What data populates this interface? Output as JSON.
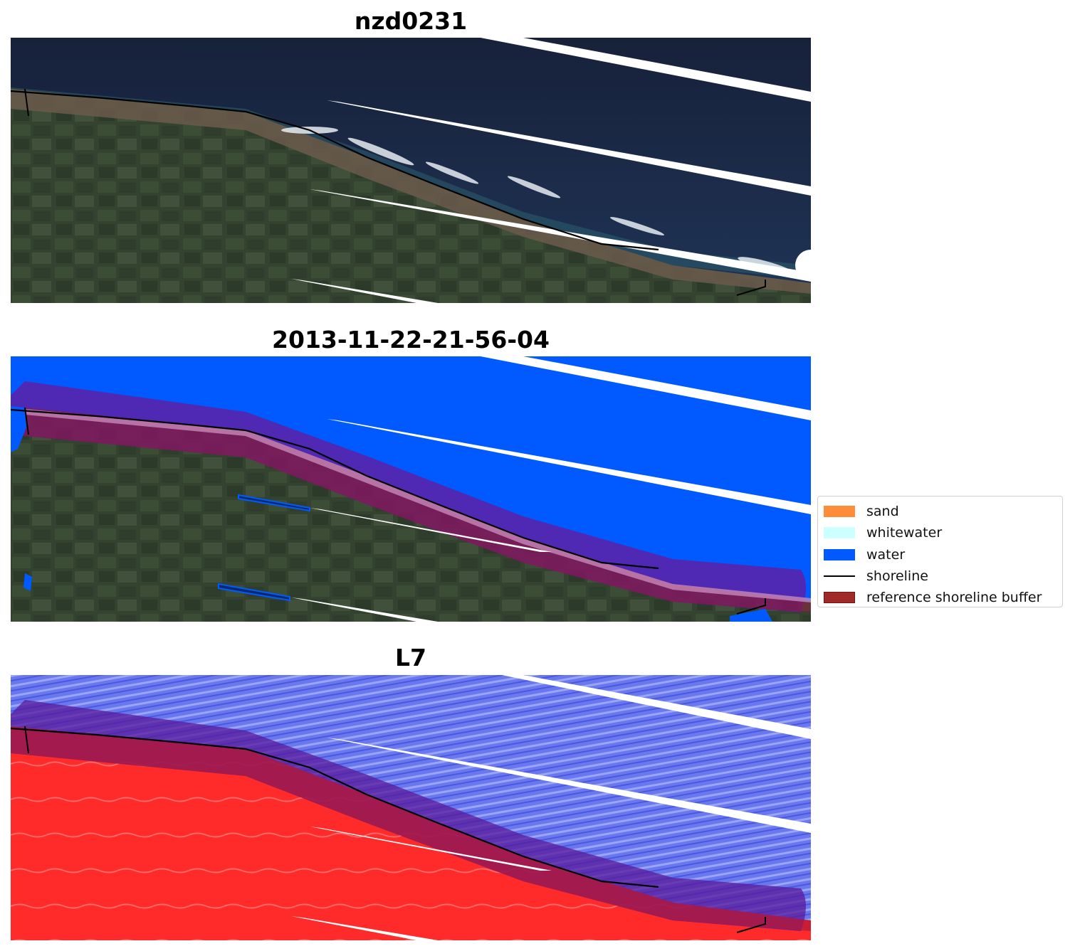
{
  "panels": [
    {
      "title": "nzd0231"
    },
    {
      "title": "2013-11-22-21-56-04"
    },
    {
      "title": "L7"
    }
  ],
  "legend": {
    "items": [
      {
        "label": "sand",
        "color": "#ff8c3a",
        "type": "patch"
      },
      {
        "label": "whitewater",
        "color": "#ccffff",
        "type": "patch"
      },
      {
        "label": "water",
        "color": "#005aff",
        "type": "patch"
      },
      {
        "label": "shoreline",
        "color": "#000000",
        "type": "line"
      },
      {
        "label": "reference shoreline buffer",
        "color": "#a02a2a",
        "type": "patch",
        "edge": "#7a1010"
      }
    ]
  },
  "colors": {
    "sea_dark": "#1a2a45",
    "land_green": "#3a4a3a",
    "beach_sand": "#6b5a4c",
    "water_class": "#005aff",
    "buffer_water": "#5b24a8",
    "buffer_land": "#7a2040",
    "index_land": "#ff2020",
    "index_water": "#6a78f0",
    "stripe": "#ffffff"
  }
}
